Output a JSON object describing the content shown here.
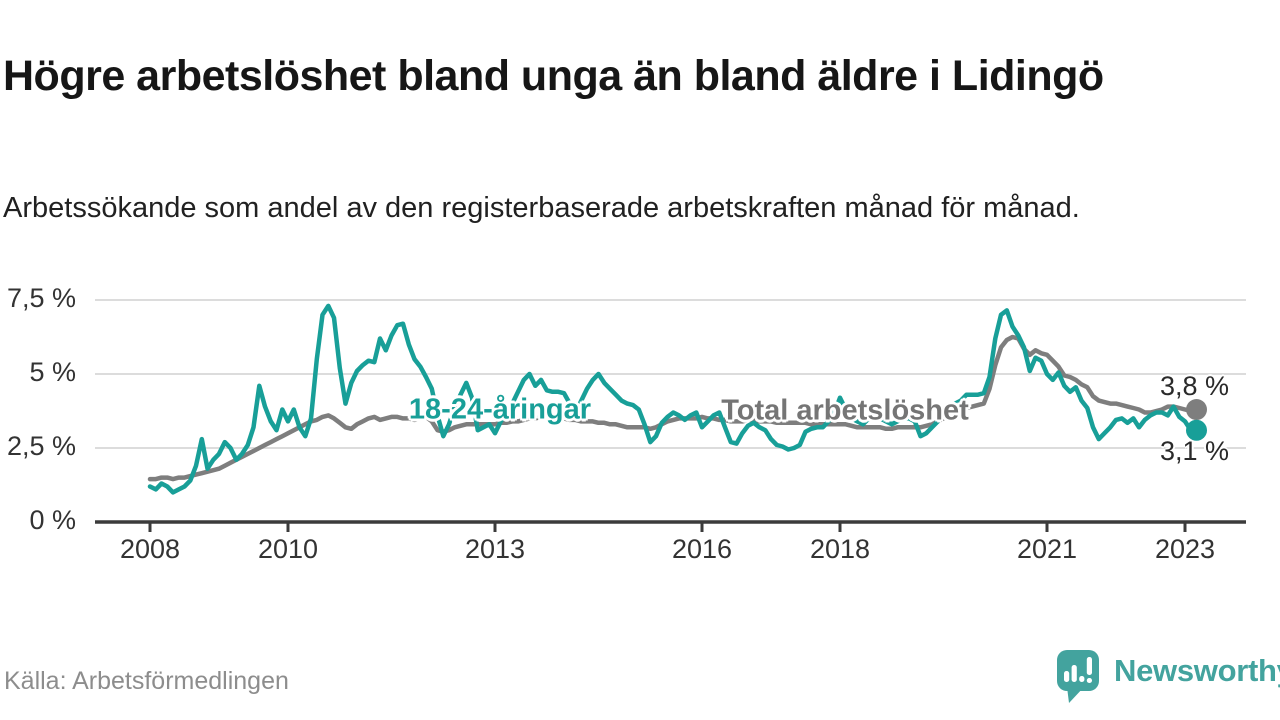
{
  "header": {
    "title": "Högre arbetslöshet bland unga än bland äldre i Lidingö",
    "subtitle": "Arbetssökande som andel av den registerbaserade arbetskraften månad för månad."
  },
  "footer": {
    "source": "Källa: Arbetsförmedlingen",
    "logo_text": "Newsworthy"
  },
  "colors": {
    "youth_line": "#189f98",
    "total_line": "#7e7e7e",
    "total_label": "#757575",
    "grid": "#dcdcdc",
    "axis": "#3b3b3b",
    "logo": "#43a39e"
  },
  "chart_data": {
    "type": "line",
    "title": "Högre arbetslöshet bland unga än bland äldre i Lidingö",
    "subtitle": "Arbetssökande som andel av den registerbaserade arbetskraften månad för månad.",
    "unit": "%",
    "x_start": "2008-01",
    "x_end": "2023-03",
    "frequency": "monthly",
    "ylim": [
      0,
      7.9
    ],
    "grid": true,
    "y_ticks": [
      {
        "value": 7.5,
        "label": "7,5 %"
      },
      {
        "value": 5,
        "label": "5 %"
      },
      {
        "value": 2.5,
        "label": "2,5 %"
      },
      {
        "value": 0,
        "label": "0 %"
      }
    ],
    "x_ticks": [
      {
        "year": 2008,
        "label": "2008"
      },
      {
        "year": 2010,
        "label": "2010"
      },
      {
        "year": 2013,
        "label": "2013"
      },
      {
        "year": 2016,
        "label": "2016"
      },
      {
        "year": 2018,
        "label": "2018"
      },
      {
        "year": 2021,
        "label": "2021"
      },
      {
        "year": 2023,
        "label": "2023"
      }
    ],
    "series": [
      {
        "name": "Total arbetslöshet",
        "end_label": "3,8 %",
        "values": [
          1.45,
          1.45,
          1.5,
          1.5,
          1.45,
          1.5,
          1.5,
          1.55,
          1.6,
          1.65,
          1.7,
          1.75,
          1.8,
          1.9,
          2.0,
          2.1,
          2.2,
          2.3,
          2.4,
          2.5,
          2.6,
          2.7,
          2.8,
          2.9,
          3.0,
          3.1,
          3.2,
          3.3,
          3.4,
          3.45,
          3.55,
          3.6,
          3.5,
          3.35,
          3.2,
          3.15,
          3.3,
          3.4,
          3.5,
          3.55,
          3.45,
          3.5,
          3.55,
          3.55,
          3.5,
          3.5,
          3.45,
          3.5,
          3.55,
          3.4,
          3.1,
          3.05,
          3.1,
          3.2,
          3.25,
          3.3,
          3.3,
          3.3,
          3.3,
          3.3,
          3.3,
          3.35,
          3.35,
          3.4,
          3.4,
          3.45,
          3.5,
          3.5,
          3.55,
          3.55,
          3.5,
          3.5,
          3.5,
          3.45,
          3.45,
          3.4,
          3.4,
          3.4,
          3.35,
          3.35,
          3.3,
          3.3,
          3.25,
          3.2,
          3.2,
          3.2,
          3.2,
          3.15,
          3.2,
          3.3,
          3.4,
          3.45,
          3.5,
          3.5,
          3.5,
          3.5,
          3.55,
          3.5,
          3.5,
          3.45,
          3.45,
          3.4,
          3.4,
          3.4,
          3.45,
          3.45,
          3.4,
          3.4,
          3.4,
          3.35,
          3.35,
          3.35,
          3.35,
          3.35,
          3.35,
          3.3,
          3.3,
          3.3,
          3.3,
          3.3,
          3.3,
          3.3,
          3.25,
          3.2,
          3.2,
          3.2,
          3.2,
          3.2,
          3.15,
          3.15,
          3.2,
          3.2,
          3.2,
          3.2,
          3.2,
          3.25,
          3.3,
          3.4,
          3.5,
          3.6,
          3.7,
          3.8,
          3.85,
          3.9,
          3.95,
          4.0,
          4.5,
          5.3,
          5.9,
          6.15,
          6.25,
          6.2,
          5.85,
          5.65,
          5.8,
          5.7,
          5.65,
          5.45,
          5.25,
          4.95,
          4.9,
          4.8,
          4.65,
          4.55,
          4.25,
          4.1,
          4.05,
          4.0,
          4.0,
          3.95,
          3.9,
          3.85,
          3.8,
          3.7,
          3.7,
          3.75,
          3.8,
          3.9,
          3.9,
          3.85,
          3.8,
          3.75,
          3.8
        ]
      },
      {
        "name": "18-24-åringar",
        "end_label": "3,1 %",
        "values": [
          1.2,
          1.1,
          1.3,
          1.2,
          1.0,
          1.1,
          1.2,
          1.4,
          1.9,
          2.8,
          1.8,
          2.1,
          2.3,
          2.7,
          2.5,
          2.1,
          2.3,
          2.6,
          3.2,
          4.6,
          3.9,
          3.4,
          3.1,
          3.8,
          3.4,
          3.8,
          3.2,
          2.9,
          3.5,
          5.5,
          7.0,
          7.3,
          6.9,
          5.2,
          4.0,
          4.7,
          5.1,
          5.3,
          5.45,
          5.4,
          6.2,
          5.8,
          6.3,
          6.65,
          6.7,
          6.0,
          5.5,
          5.25,
          4.9,
          4.5,
          3.6,
          2.9,
          3.3,
          3.9,
          4.3,
          4.7,
          4.2,
          3.1,
          3.2,
          3.3,
          3.0,
          3.4,
          3.7,
          4.0,
          4.4,
          4.8,
          5.0,
          4.6,
          4.8,
          4.45,
          4.4,
          4.4,
          4.35,
          4.0,
          3.7,
          4.1,
          4.5,
          4.8,
          5.0,
          4.7,
          4.5,
          4.3,
          4.1,
          4.0,
          3.95,
          3.8,
          3.3,
          2.7,
          2.9,
          3.35,
          3.55,
          3.7,
          3.6,
          3.45,
          3.6,
          3.7,
          3.2,
          3.4,
          3.6,
          3.7,
          3.2,
          2.7,
          2.65,
          3.0,
          3.25,
          3.35,
          3.2,
          3.1,
          2.8,
          2.6,
          2.55,
          2.45,
          2.5,
          2.6,
          3.05,
          3.15,
          3.2,
          3.2,
          3.4,
          3.7,
          4.2,
          3.8,
          3.5,
          3.4,
          3.3,
          3.5,
          3.6,
          3.5,
          3.4,
          3.3,
          3.4,
          3.5,
          3.5,
          3.4,
          2.9,
          3.0,
          3.2,
          3.4,
          3.6,
          3.8,
          4.0,
          4.1,
          4.3,
          4.3,
          4.3,
          4.35,
          4.9,
          6.2,
          7.0,
          7.15,
          6.6,
          6.3,
          5.9,
          5.1,
          5.55,
          5.45,
          5.0,
          4.8,
          5.05,
          4.6,
          4.4,
          4.55,
          4.1,
          3.85,
          3.2,
          2.8,
          3.0,
          3.2,
          3.45,
          3.5,
          3.35,
          3.5,
          3.2,
          3.45,
          3.6,
          3.7,
          3.7,
          3.6,
          3.9,
          3.55,
          3.4,
          3.1,
          3.1
        ]
      }
    ]
  }
}
